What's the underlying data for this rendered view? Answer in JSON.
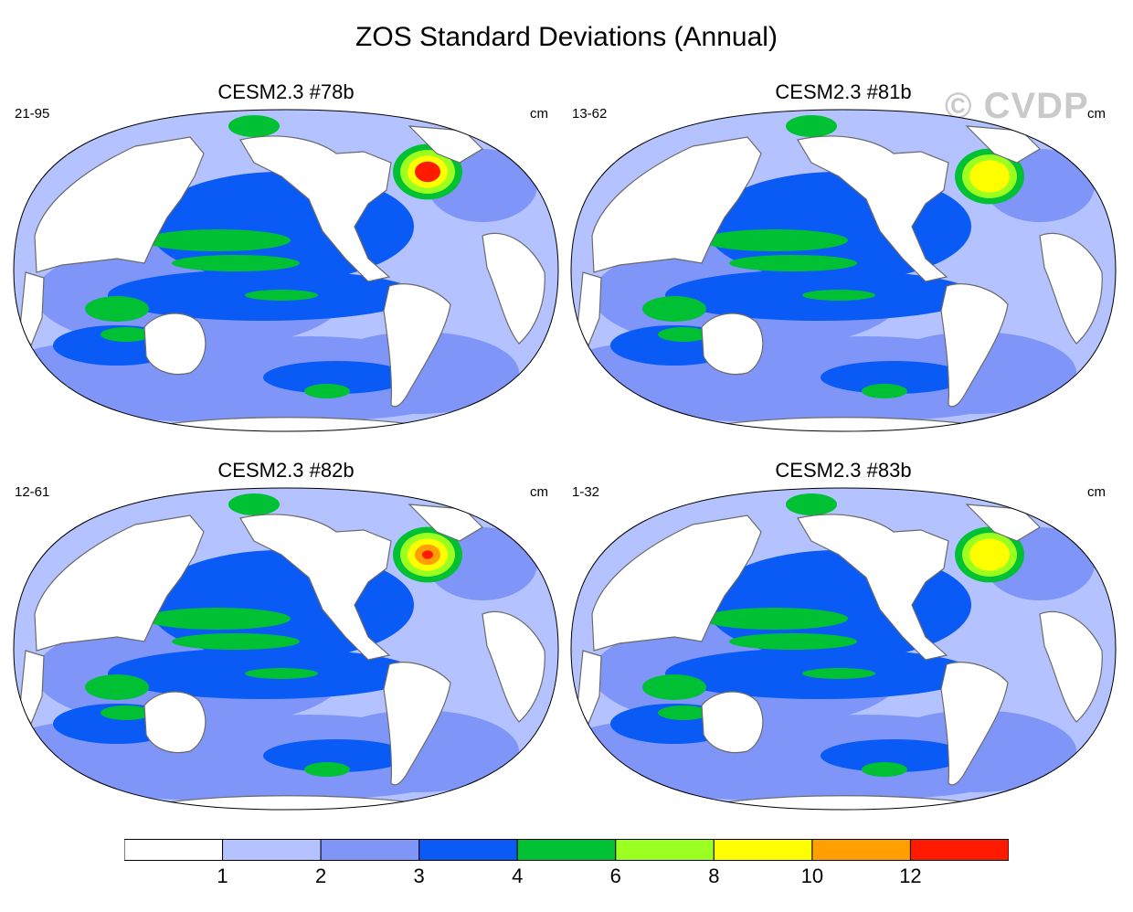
{
  "title": "ZOS Standard Deviations (Annual)",
  "watermark": "© CVDP",
  "units": "cm",
  "panels": [
    {
      "name": "CESM2.3 #78b",
      "years": "21-95",
      "units": "cm"
    },
    {
      "name": "CESM2.3 #81b",
      "years": "13-62",
      "units": "cm"
    },
    {
      "name": "CESM2.3 #82b",
      "years": "12-61",
      "units": "cm"
    },
    {
      "name": "CESM2.3 #83b",
      "years": "1-32",
      "units": "cm"
    }
  ],
  "colorbar": {
    "levels": [
      "1",
      "2",
      "3",
      "4",
      "6",
      "8",
      "10",
      "12"
    ],
    "colors": [
      "#ffffff",
      "#b4c3ff",
      "#7f95f8",
      "#0a5af5",
      "#00c034",
      "#9bff1f",
      "#ffff00",
      "#ff9f00",
      "#ff1a00"
    ]
  }
}
